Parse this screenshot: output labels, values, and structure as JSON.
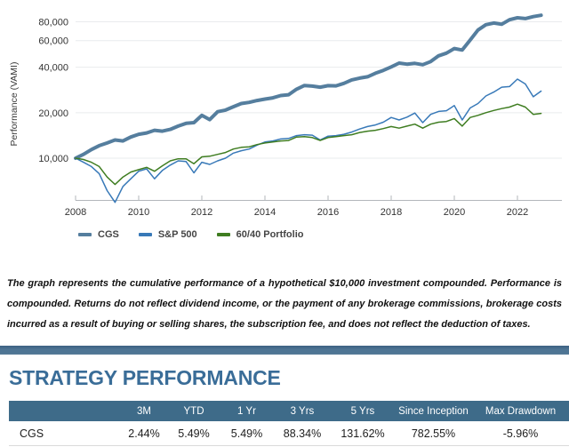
{
  "chart_data": {
    "type": "line",
    "title": "",
    "xlabel": "",
    "ylabel": "Performance (VAMI)",
    "y_scale": "log",
    "xlim": [
      2007.6,
      2023.4
    ],
    "ylim": [
      4200,
      100000
    ],
    "grid": "horizontal",
    "legend_position": "bottom-left",
    "y_ticks": [
      {
        "v": 10000,
        "label": "10,000"
      },
      {
        "v": 20000,
        "label": "20,000"
      },
      {
        "v": 40000,
        "label": "40,000"
      },
      {
        "v": 60000,
        "label": "60,000"
      },
      {
        "v": 80000,
        "label": "80,000"
      }
    ],
    "x_ticks": [
      {
        "v": 2008,
        "label": "2008"
      },
      {
        "v": 2010,
        "label": "2010"
      },
      {
        "v": 2012,
        "label": "2012"
      },
      {
        "v": 2014,
        "label": "2014"
      },
      {
        "v": 2016,
        "label": "2016"
      },
      {
        "v": 2018,
        "label": "2018"
      },
      {
        "v": 2020,
        "label": "2020"
      },
      {
        "v": 2022,
        "label": "2022"
      }
    ],
    "x": [
      2008,
      2008.25,
      2008.5,
      2008.75,
      2009,
      2009.25,
      2009.5,
      2009.75,
      2010,
      2010.25,
      2010.5,
      2010.75,
      2011,
      2011.25,
      2011.5,
      2011.75,
      2012,
      2012.25,
      2012.5,
      2012.75,
      2013,
      2013.25,
      2013.5,
      2013.75,
      2014,
      2014.25,
      2014.5,
      2014.75,
      2015,
      2015.25,
      2015.5,
      2015.75,
      2016,
      2016.25,
      2016.5,
      2016.75,
      2017,
      2017.25,
      2017.5,
      2017.75,
      2018,
      2018.25,
      2018.5,
      2018.75,
      2019,
      2019.25,
      2019.5,
      2019.75,
      2020,
      2020.25,
      2020.5,
      2020.75,
      2021,
      2021.25,
      2021.5,
      2021.75,
      2022,
      2022.25,
      2022.5,
      2022.75
    ],
    "series": [
      {
        "name": "CGS",
        "color": "#557e9e",
        "line_width": 4,
        "values": [
          10000,
          10600,
          11400,
          12100,
          12600,
          13200,
          13000,
          13800,
          14400,
          14700,
          15300,
          15100,
          15500,
          16300,
          17000,
          17200,
          19200,
          18000,
          20300,
          20800,
          21900,
          23000,
          23400,
          24100,
          24600,
          25100,
          26000,
          26300,
          28600,
          30300,
          30000,
          29500,
          30200,
          30100,
          31300,
          33000,
          33900,
          34600,
          36500,
          38100,
          40200,
          42600,
          41900,
          42400,
          41600,
          43600,
          47600,
          49600,
          53200,
          52000,
          60500,
          70500,
          76500,
          78500,
          77000,
          82500,
          85000,
          84000,
          86500,
          88300
        ]
      },
      {
        "name": "S&P 500",
        "color": "#3879b8",
        "line_width": 1.5,
        "values": [
          10000,
          9400,
          8800,
          7900,
          6100,
          5100,
          6500,
          7300,
          8200,
          8500,
          7300,
          8300,
          9000,
          9600,
          9500,
          8000,
          9400,
          9100,
          9600,
          10000,
          10800,
          11200,
          11500,
          12200,
          12800,
          13000,
          13400,
          13500,
          14100,
          14300,
          14200,
          13200,
          14000,
          14100,
          14400,
          14900,
          15600,
          16200,
          16600,
          17300,
          18600,
          17900,
          18700,
          19900,
          17200,
          19500,
          20400,
          20600,
          22300,
          17900,
          21500,
          23000,
          25800,
          27400,
          29500,
          29800,
          33400,
          31000,
          25500,
          27800
        ]
      },
      {
        "name": "60/40 Portfolio",
        "color": "#3f7d21",
        "line_width": 1.5,
        "values": [
          10000,
          9800,
          9400,
          8800,
          7500,
          6700,
          7500,
          8100,
          8400,
          8700,
          8200,
          8900,
          9600,
          9900,
          9900,
          9200,
          10200,
          10300,
          10600,
          10900,
          11500,
          11800,
          11900,
          12300,
          12600,
          12800,
          13000,
          13100,
          13800,
          13900,
          13700,
          13100,
          13700,
          13900,
          14100,
          14300,
          14800,
          15100,
          15300,
          15700,
          16200,
          15800,
          16300,
          16800,
          15800,
          16800,
          17300,
          17500,
          18300,
          16300,
          18600,
          19200,
          20000,
          20700,
          21300,
          21800,
          22800,
          21800,
          19500,
          19800
        ]
      }
    ]
  },
  "disclaimer": "The graph represents the cumulative performance of a hypothetical $10,000 investment compounded. Performance is compounded. Returns do not reflect dividend income, or the payment of any brokerage commissions, brokerage costs incurred as a result of buying or selling shares, the subscription fee, and does not reflect the deduction of taxes.",
  "section": {
    "title": "STRATEGY PERFORMANCE",
    "table": {
      "columns": [
        "",
        "3M",
        "YTD",
        "1 Yr",
        "3 Yrs",
        "5 Yrs",
        "Since Inception",
        "Max Drawdown"
      ],
      "rows": [
        {
          "label": "CGS",
          "values": [
            "2.44%",
            "5.49%",
            "5.49%",
            "88.34%",
            "131.62%",
            "782.55%",
            "-5.96%"
          ]
        }
      ]
    }
  },
  "colors": {
    "accent_steel_blue": "#4e7594",
    "table_header_bg": "#3e6b89",
    "heading_text": "#3a6d98",
    "gridline": "#e9ebed",
    "axis": "#b3b7bb",
    "tick_text": "#333333"
  }
}
